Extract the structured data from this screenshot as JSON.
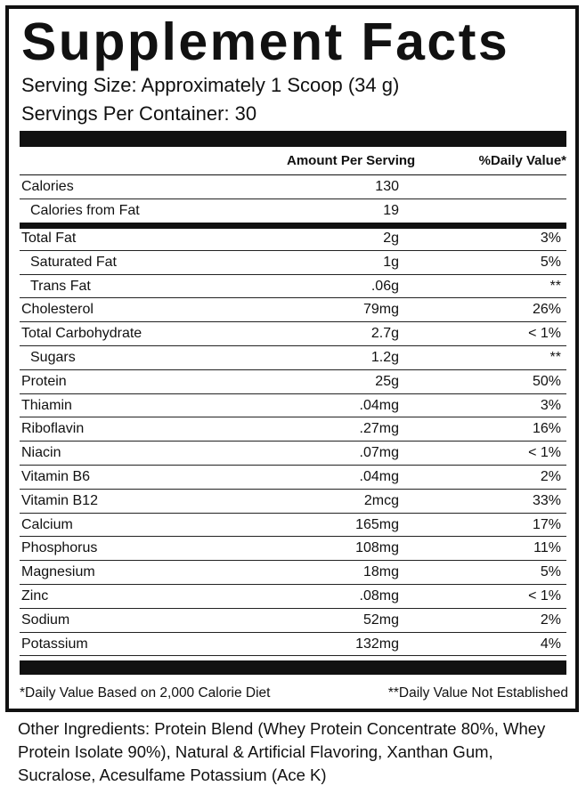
{
  "title": "Supplement Facts",
  "serving_size": "Serving Size: Approximately 1 Scoop (34 g)",
  "servings_per_container": "Servings Per Container: 30",
  "table": {
    "headers": [
      "Amount Per Serving",
      "%Daily Value*"
    ],
    "rows": [
      [
        "Calories",
        "130"
      ],
      [
        "Calories from Fat",
        "19"
      ],
      [
        "Total Fat",
        "2g",
        "3%"
      ],
      [
        "Saturated Fat",
        "1g",
        "5%"
      ],
      [
        "Trans Fat",
        ".06g",
        "**"
      ],
      [
        "Cholesterol",
        "79mg",
        "26%"
      ],
      [
        "Total Carbohydrate",
        "2.7g",
        "< 1%"
      ],
      [
        "Sugars",
        "1.2g",
        "**"
      ],
      [
        "Protein",
        "25g",
        "50%"
      ],
      [
        "Thiamin",
        ".04mg",
        "3%"
      ],
      [
        "Riboflavin",
        ".27mg",
        "16%"
      ],
      [
        "Niacin",
        ".07mg",
        "< 1%"
      ],
      [
        "Vitamin B6",
        ".04mg",
        "2%"
      ],
      [
        "Vitamin B12",
        "2mcg",
        "33%"
      ],
      [
        "Calcium",
        "165mg",
        "17%"
      ],
      [
        "Phosphorus",
        "108mg",
        "11%"
      ],
      [
        "Magnesium",
        "18mg",
        "5%"
      ],
      [
        "Zinc",
        ".08mg",
        "< 1%"
      ],
      [
        "Sodium",
        "52mg",
        "2%"
      ],
      [
        "Potassium",
        "132mg",
        "4%"
      ]
    ]
  },
  "footnotes": [
    "*Daily Value Based on 2,000 Calorie Diet",
    "**Daily Value Not Established"
  ],
  "other_ingredients": "Other Ingredients: Protein Blend (Whey Protein Concentrate 80%, Whey Protein Isolate 90%), Natural & Artificial Flavoring, Xanthan Gum, Sucralose, Acesulfame Potassium (Ace K)"
}
